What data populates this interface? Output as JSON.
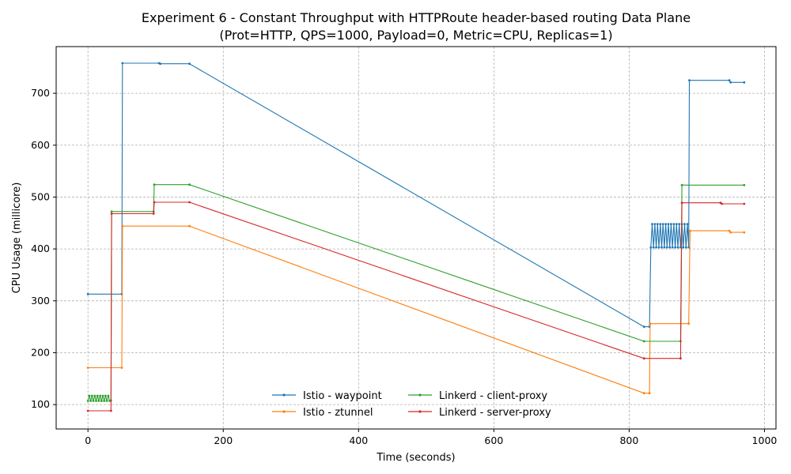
{
  "chart_data": {
    "type": "line",
    "title": "Experiment 6 - Constant Throughput with HTTPRoute header-based routing Data Plane",
    "subtitle": "(Prot=HTTP, QPS=1000, Payload=0, Metric=CPU, Replicas=1)",
    "xlabel": "Time (seconds)",
    "ylabel": "CPU Usage (millicore)",
    "xlim": [
      -47,
      1017
    ],
    "ylim": [
      53,
      790
    ],
    "xticks": [
      0,
      200,
      400,
      600,
      800,
      1000
    ],
    "yticks": [
      100,
      200,
      300,
      400,
      500,
      600,
      700
    ],
    "grid": true,
    "legend_position": "lower-center",
    "series": [
      {
        "name": "Istio - waypoint",
        "color": "#1f77b4",
        "points": [
          [
            0,
            313
          ],
          [
            50,
            313
          ],
          [
            51,
            758
          ],
          [
            105,
            758
          ],
          [
            107,
            757
          ],
          [
            150,
            757
          ],
          [
            822,
            250
          ],
          [
            830,
            250
          ],
          [
            832,
            403
          ],
          [
            834,
            448
          ],
          [
            836,
            403
          ],
          [
            838,
            448
          ],
          [
            840,
            403
          ],
          [
            842,
            448
          ],
          [
            844,
            403
          ],
          [
            846,
            448
          ],
          [
            848,
            403
          ],
          [
            850,
            448
          ],
          [
            852,
            403
          ],
          [
            854,
            448
          ],
          [
            856,
            403
          ],
          [
            858,
            448
          ],
          [
            860,
            403
          ],
          [
            862,
            448
          ],
          [
            864,
            403
          ],
          [
            866,
            448
          ],
          [
            868,
            403
          ],
          [
            870,
            448
          ],
          [
            872,
            403
          ],
          [
            874,
            448
          ],
          [
            876,
            403
          ],
          [
            878,
            448
          ],
          [
            880,
            403
          ],
          [
            882,
            448
          ],
          [
            884,
            403
          ],
          [
            886,
            448
          ],
          [
            888,
            403
          ],
          [
            889,
            725
          ],
          [
            948,
            725
          ],
          [
            950,
            721
          ],
          [
            970,
            721
          ]
        ]
      },
      {
        "name": "Istio - ztunnel",
        "color": "#ff7f0e",
        "points": [
          [
            0,
            171
          ],
          [
            50,
            171
          ],
          [
            51,
            444
          ],
          [
            150,
            444
          ],
          [
            822,
            122
          ],
          [
            830,
            122
          ],
          [
            831,
            256
          ],
          [
            888,
            256
          ],
          [
            890,
            435
          ],
          [
            948,
            435
          ],
          [
            950,
            432
          ],
          [
            970,
            432
          ]
        ]
      },
      {
        "name": "Linkerd - client-proxy",
        "color": "#2ca02c",
        "points": [
          [
            0,
            107
          ],
          [
            2,
            117
          ],
          [
            4,
            107
          ],
          [
            6,
            117
          ],
          [
            8,
            107
          ],
          [
            10,
            117
          ],
          [
            12,
            107
          ],
          [
            14,
            117
          ],
          [
            16,
            107
          ],
          [
            18,
            117
          ],
          [
            20,
            107
          ],
          [
            22,
            117
          ],
          [
            24,
            107
          ],
          [
            26,
            117
          ],
          [
            28,
            107
          ],
          [
            30,
            117
          ],
          [
            32,
            107
          ],
          [
            34,
            108
          ],
          [
            35,
            472
          ],
          [
            97,
            472
          ],
          [
            98,
            524
          ],
          [
            150,
            524
          ],
          [
            822,
            222
          ],
          [
            876,
            222
          ],
          [
            878,
            523
          ],
          [
            970,
            523
          ]
        ]
      },
      {
        "name": "Linkerd - server-proxy",
        "color": "#d62728",
        "points": [
          [
            0,
            88
          ],
          [
            34,
            88
          ],
          [
            35,
            468
          ],
          [
            97,
            468
          ],
          [
            98,
            490
          ],
          [
            150,
            490
          ],
          [
            822,
            189
          ],
          [
            876,
            189
          ],
          [
            878,
            489
          ],
          [
            935,
            489
          ],
          [
            937,
            487
          ],
          [
            970,
            487
          ]
        ]
      }
    ]
  }
}
